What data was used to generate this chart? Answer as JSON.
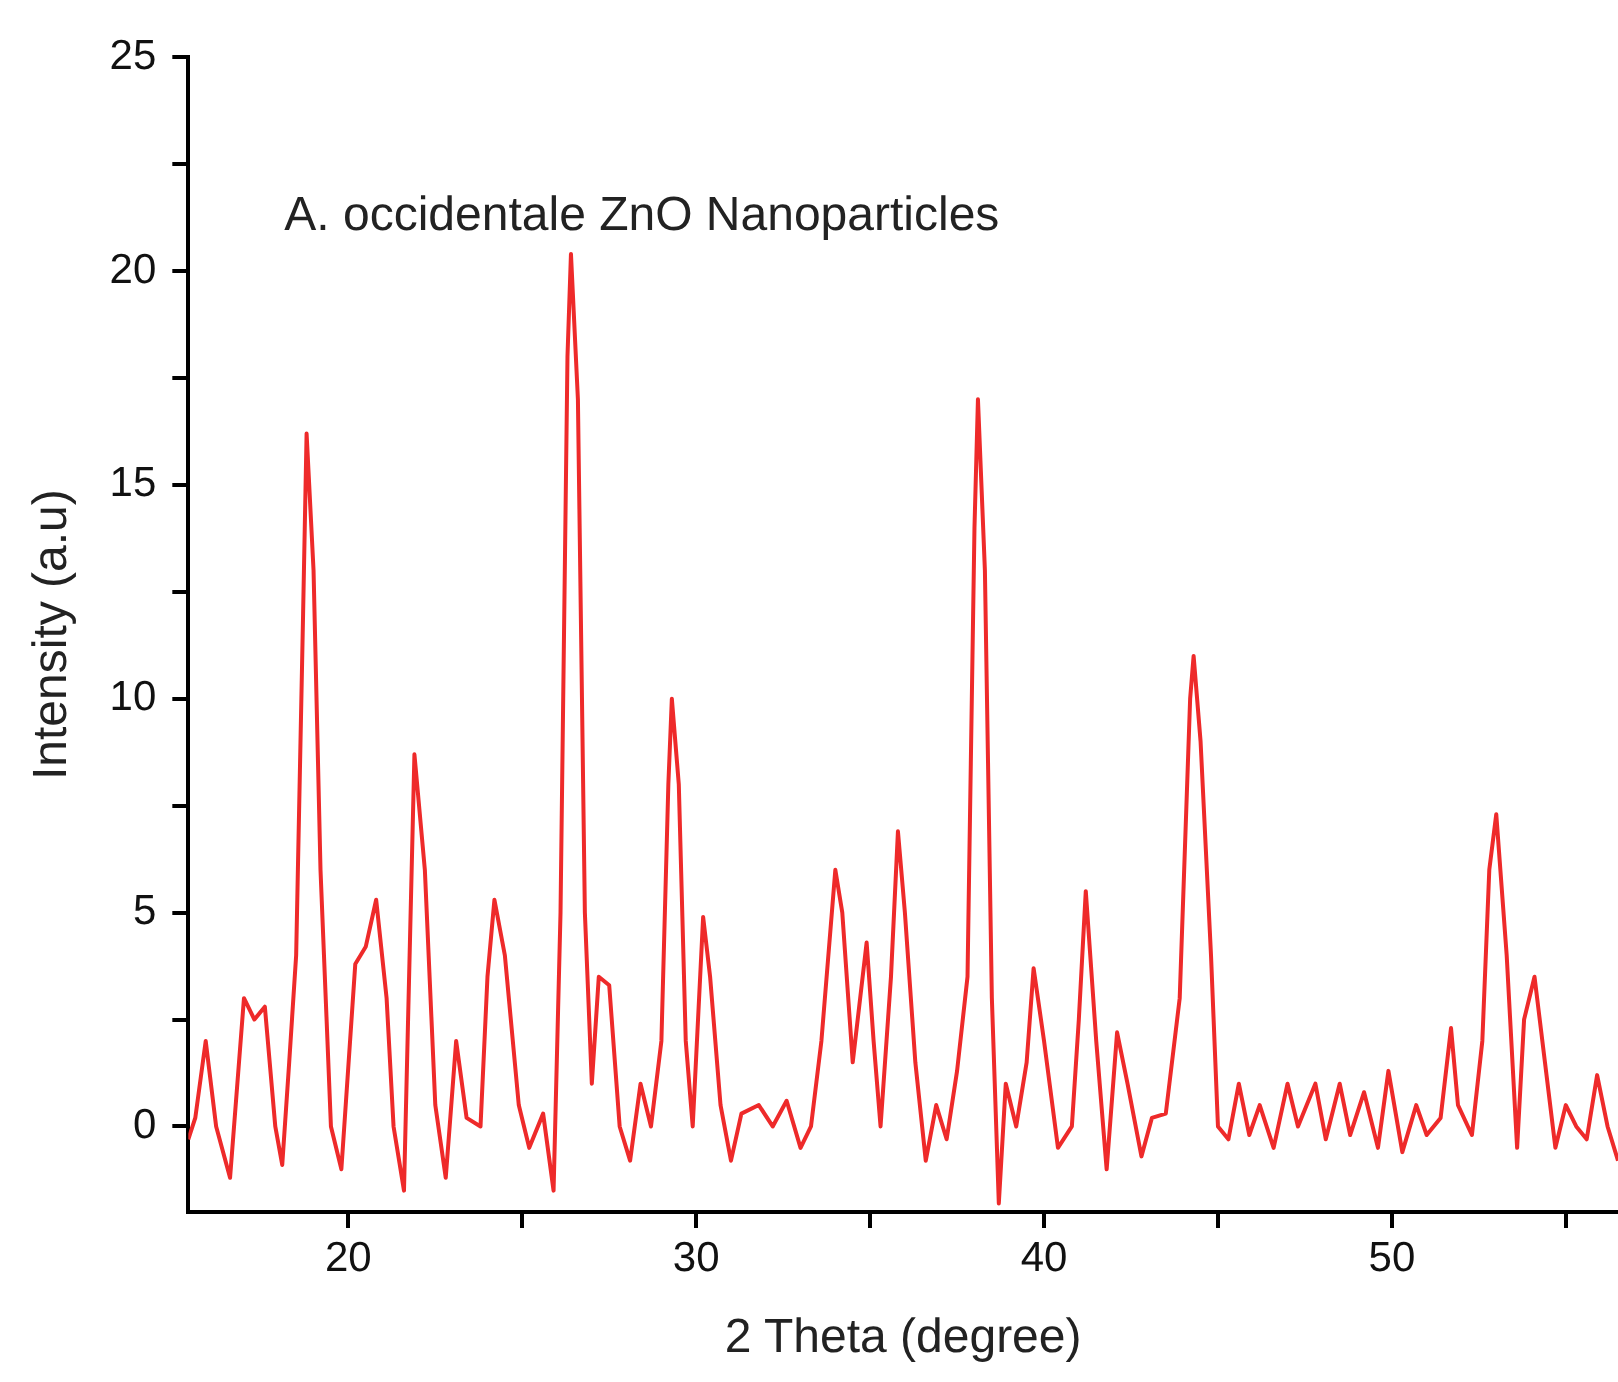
{
  "chart_data": {
    "type": "line",
    "title": "A. occidentale ZnO Nanoparticles",
    "xlabel": "2 Theta (degree)",
    "ylabel": "Intensity (a.u)",
    "xlim": [
      15.4,
      56.5
    ],
    "ylim": [
      -2,
      25
    ],
    "xticks": [
      20,
      {
        "value": 25,
        "label": null
      },
      30,
      {
        "value": 35,
        "label": null
      },
      40,
      {
        "value": 45,
        "label": null
      },
      50,
      {
        "value": 55,
        "label": null
      }
    ],
    "yticks": [
      0,
      {
        "value": 2.5,
        "label": null
      },
      5,
      {
        "value": 7.5,
        "label": null
      },
      10,
      {
        "value": 12.5,
        "label": null
      },
      15,
      {
        "value": 17.5,
        "label": null
      },
      20,
      {
        "value": 22.5,
        "label": null
      },
      25
    ],
    "grid": false,
    "legend": false,
    "marker": "none",
    "line_style": "solid",
    "series": [
      {
        "color": "#ee2a2a",
        "x": [
          15.4,
          15.6,
          15.9,
          16.2,
          16.6,
          17.0,
          17.3,
          17.6,
          17.9,
          18.1,
          18.3,
          18.5,
          18.7,
          18.8,
          19.0,
          19.2,
          19.5,
          19.8,
          20.2,
          20.5,
          20.8,
          21.1,
          21.3,
          21.6,
          21.9,
          22.2,
          22.5,
          22.8,
          23.1,
          23.4,
          23.8,
          24.0,
          24.2,
          24.5,
          24.9,
          25.2,
          25.6,
          25.9,
          26.1,
          26.3,
          26.4,
          26.6,
          26.8,
          27.0,
          27.2,
          27.5,
          27.8,
          28.1,
          28.4,
          28.7,
          29.0,
          29.2,
          29.3,
          29.5,
          29.7,
          29.9,
          30.2,
          30.4,
          30.7,
          31.0,
          31.3,
          31.8,
          32.2,
          32.6,
          33.0,
          33.3,
          33.6,
          34.0,
          34.2,
          34.5,
          34.9,
          35.1,
          35.3,
          35.6,
          35.8,
          36.0,
          36.3,
          36.6,
          36.9,
          37.2,
          37.5,
          37.8,
          38.0,
          38.1,
          38.3,
          38.5,
          38.7,
          38.9,
          39.2,
          39.5,
          39.7,
          40.0,
          40.4,
          40.8,
          41.0,
          41.2,
          41.5,
          41.8,
          42.1,
          42.4,
          42.8,
          43.1,
          43.5,
          43.9,
          44.2,
          44.3,
          44.5,
          44.8,
          45.0,
          45.3,
          45.6,
          45.9,
          46.2,
          46.6,
          47.0,
          47.3,
          47.8,
          48.1,
          48.5,
          48.8,
          49.2,
          49.6,
          49.9,
          50.3,
          50.7,
          51.0,
          51.4,
          51.7,
          51.9,
          52.3,
          52.6,
          52.8,
          53.0,
          53.3,
          53.6,
          53.8,
          54.1,
          54.4,
          54.7,
          55.0,
          55.3,
          55.6,
          55.9,
          56.2,
          56.5
        ],
        "values": [
          -0.3,
          0.2,
          2.0,
          0.0,
          -1.2,
          3.0,
          2.5,
          2.8,
          0.0,
          -0.9,
          1.5,
          4.0,
          12.0,
          16.2,
          13.0,
          6.0,
          0.0,
          -1.0,
          3.8,
          4.2,
          5.3,
          3.0,
          0.0,
          -1.5,
          8.7,
          6.0,
          0.5,
          -1.2,
          2.0,
          0.2,
          0.0,
          3.5,
          5.3,
          4.0,
          0.5,
          -0.5,
          0.3,
          -1.5,
          5.0,
          18.0,
          20.4,
          17.0,
          5.0,
          1.0,
          3.5,
          3.3,
          0.0,
          -0.8,
          1.0,
          0.0,
          2.0,
          8.0,
          10.0,
          8.0,
          2.0,
          0.0,
          4.9,
          3.5,
          0.5,
          -0.8,
          0.3,
          0.5,
          0.0,
          0.6,
          -0.5,
          0.0,
          2.0,
          6.0,
          5.0,
          1.5,
          4.3,
          2.0,
          0.0,
          3.5,
          6.9,
          5.0,
          1.5,
          -0.8,
          0.5,
          -0.3,
          1.3,
          3.5,
          14.0,
          17.0,
          13.0,
          3.0,
          -1.8,
          1.0,
          0.0,
          1.5,
          3.7,
          2.0,
          -0.5,
          0.0,
          2.5,
          5.5,
          2.0,
          -1.0,
          2.2,
          1.0,
          -0.7,
          0.2,
          0.3,
          3.0,
          10.0,
          11.0,
          9.0,
          4.0,
          0.0,
          -0.3,
          1.0,
          -0.2,
          0.5,
          -0.5,
          1.0,
          0.0,
          1.0,
          -0.3,
          1.0,
          -0.2,
          0.8,
          -0.5,
          1.3,
          -0.6,
          0.5,
          -0.2,
          0.2,
          2.3,
          0.5,
          -0.2,
          2.0,
          6.0,
          7.3,
          4.0,
          -0.5,
          2.5,
          3.5,
          1.5,
          -0.5,
          0.5,
          0.0,
          -0.3,
          1.2,
          0.0,
          -0.8
        ]
      }
    ]
  }
}
